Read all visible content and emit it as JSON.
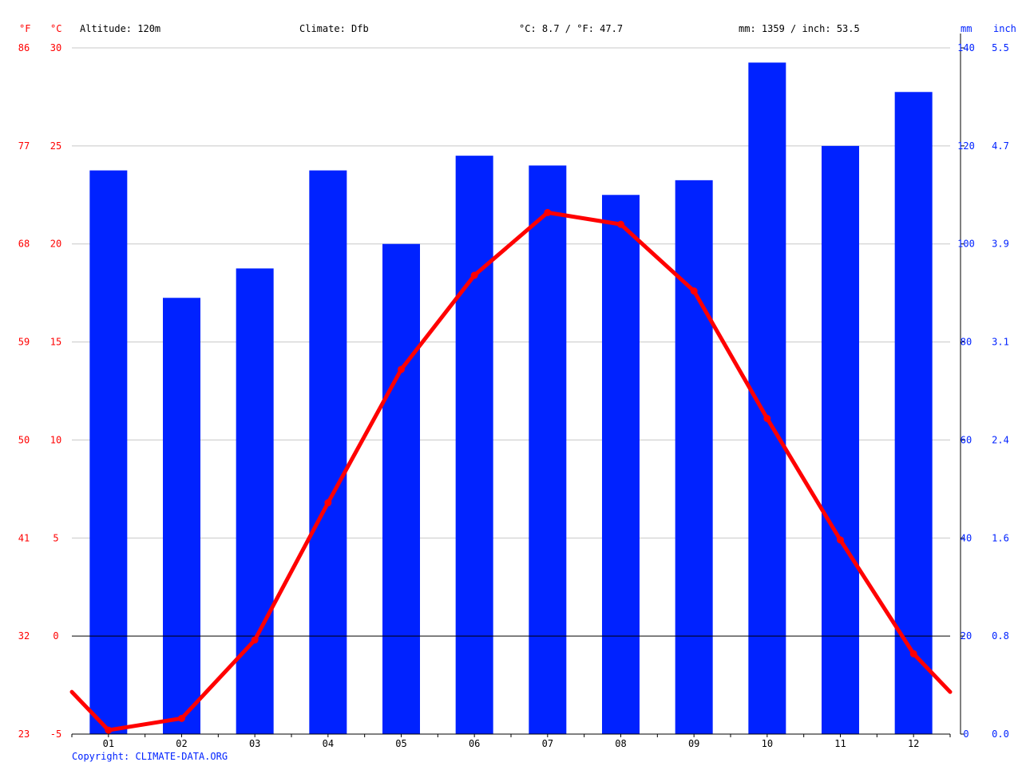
{
  "header": {
    "unit_f": "°F",
    "unit_c": "°C",
    "altitude": "Altitude: 120m",
    "climate": "Climate: Dfb",
    "temp_avg": "°C: 8.7 / °F: 47.7",
    "precip_total": "mm: 1359 / inch: 53.5",
    "unit_mm": "mm",
    "unit_inch": "inch"
  },
  "footer": {
    "copyright": "Copyright: CLIMATE-DATA.ORG"
  },
  "colors": {
    "temperature": "#ff0000",
    "precipitation": "#0022ff",
    "axis": "#000000",
    "grid": "#c8c8c8"
  },
  "chart_data": {
    "type": "bar",
    "categories": [
      "01",
      "02",
      "03",
      "04",
      "05",
      "06",
      "07",
      "08",
      "09",
      "10",
      "11",
      "12"
    ],
    "series": [
      {
        "type": "bar",
        "axis": "right",
        "unit": "mm",
        "values": [
          115,
          89,
          95,
          115,
          100,
          118,
          116,
          110,
          113,
          137,
          120,
          131
        ]
      },
      {
        "type": "line",
        "axis": "left",
        "unit": "°C",
        "values": [
          -4.8,
          -4.2,
          -0.2,
          6.8,
          13.6,
          18.4,
          21.6,
          21.0,
          17.6,
          11.1,
          4.9,
          -0.9
        ]
      }
    ],
    "left_axis_c": {
      "ticks": [
        30,
        25,
        20,
        15,
        10,
        5,
        0,
        -5
      ],
      "ylim": [
        -5,
        30
      ]
    },
    "left_axis_f": {
      "ticks": [
        "86",
        "77",
        "68",
        "59",
        "50",
        "41",
        "32",
        "23"
      ]
    },
    "right_axis_mm": {
      "ticks": [
        140,
        120,
        100,
        80,
        60,
        40,
        20,
        0
      ],
      "ylim": [
        0,
        140
      ]
    },
    "right_axis_inch": {
      "ticks": [
        "5.5",
        "4.7",
        "3.9",
        "3.1",
        "2.4",
        "1.6",
        "0.8",
        "0.0"
      ]
    },
    "grid": true
  }
}
